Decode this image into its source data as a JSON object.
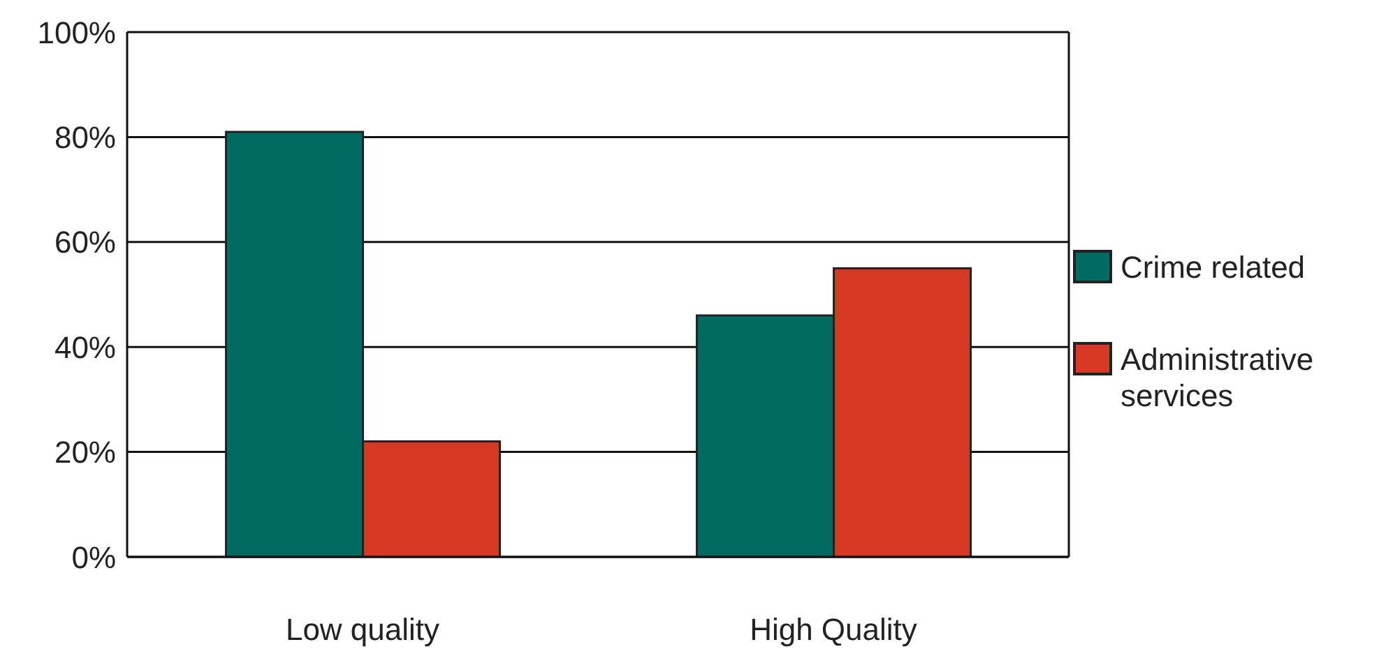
{
  "chart_data": {
    "type": "bar",
    "categories": [
      "Low quality",
      "High Quality"
    ],
    "series": [
      {
        "name": "Crime related",
        "color": "#006b63",
        "values": [
          81,
          46
        ]
      },
      {
        "name": "Administrative services",
        "color": "#d63a22",
        "values": [
          22,
          55
        ]
      }
    ],
    "ylim": [
      0,
      100
    ],
    "yticks": [
      {
        "value": 0,
        "label": "0%"
      },
      {
        "value": 20,
        "label": "20%"
      },
      {
        "value": 40,
        "label": "40%"
      },
      {
        "value": 60,
        "label": "60%"
      },
      {
        "value": 80,
        "label": "80%"
      },
      {
        "value": 100,
        "label": "100%"
      }
    ],
    "grid": "y",
    "legend": "right"
  }
}
